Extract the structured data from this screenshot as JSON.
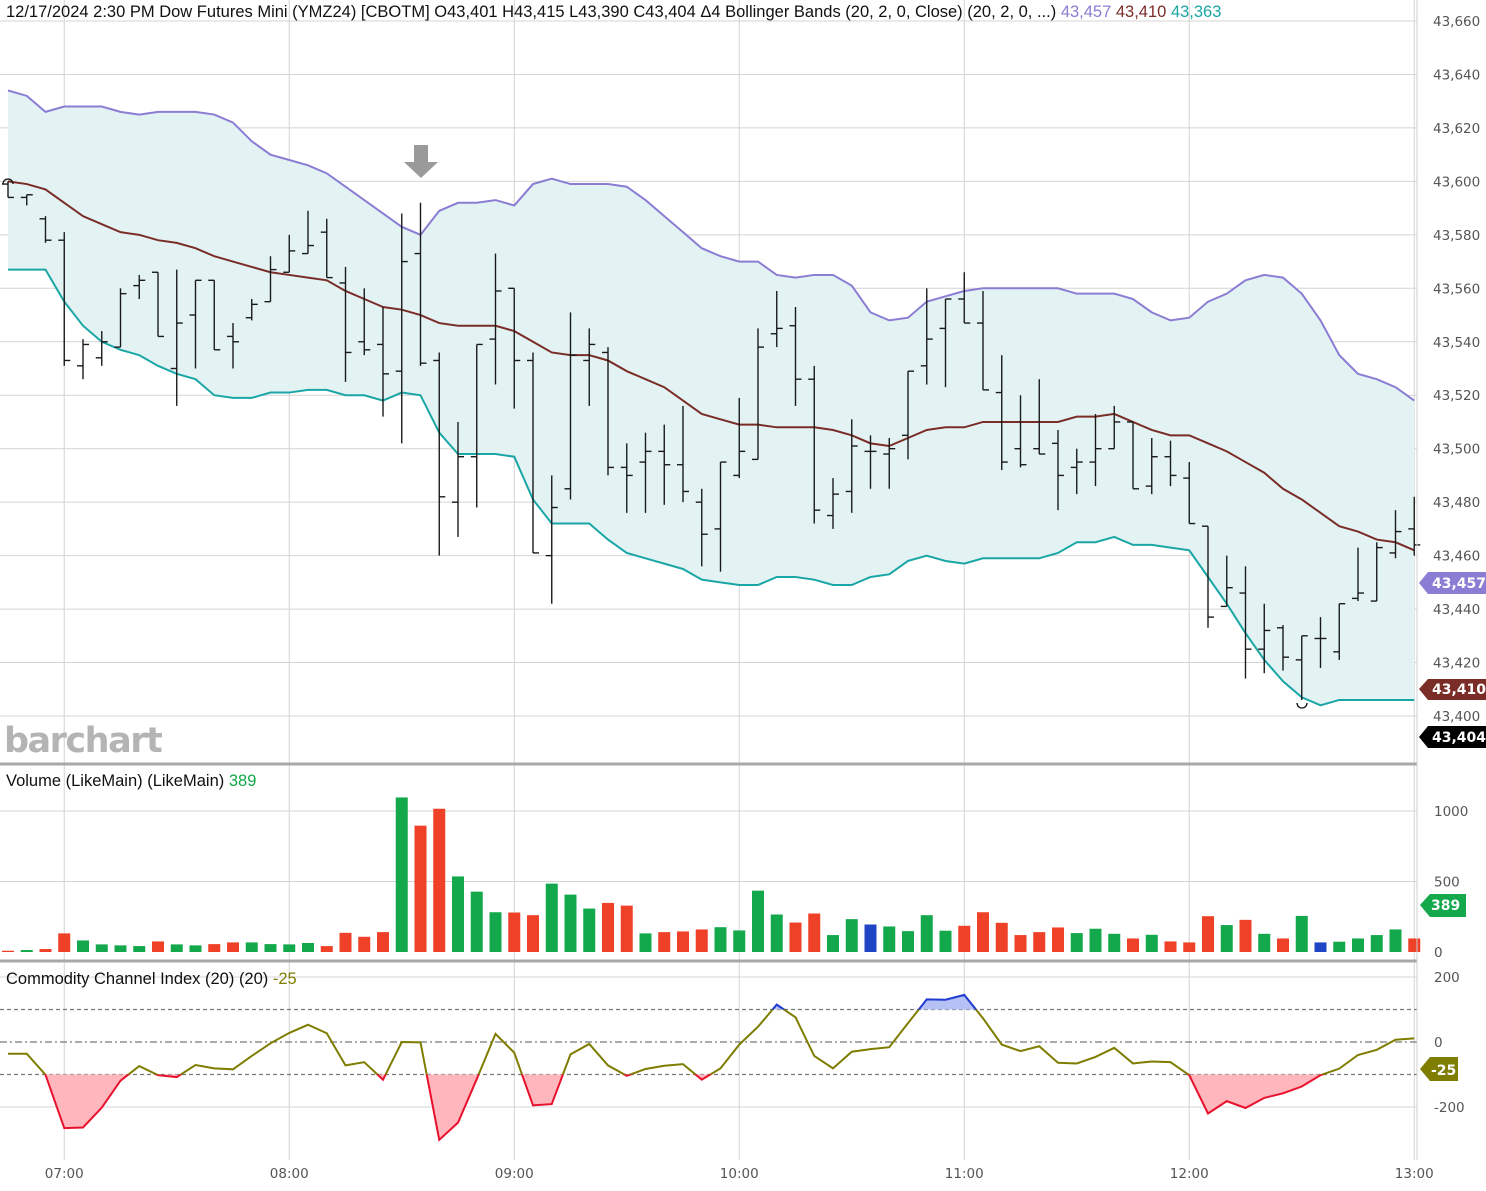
{
  "header": {
    "datetime": "12/17/2024 2:30 PM",
    "instrument": "Dow Futures Mini (YMZ24) [CBOTM]",
    "ohlc_text": "O43,401  H43,415  L43,390  C43,404  Δ4",
    "study": "Bollinger Bands (20, 2, 0, Close)  (20, 2, 0, ...)",
    "upper_value": "43,457",
    "middle_value": "43,410",
    "lower_value": "43,363"
  },
  "volume_legend": {
    "label": "Volume (LikeMain)  (LikeMain)",
    "value": "389"
  },
  "cci_legend": {
    "label": "Commodity Channel Index (20)  (20)",
    "value": "-25"
  },
  "logo": "barchart",
  "price_tags": {
    "upper": "43,457",
    "middle": "43,410",
    "last": "43,404"
  },
  "volume_tag": "389",
  "cci_tag": "-25",
  "colors": {
    "upper_band": "#8a7dd3",
    "middle_band": "#7a2d27",
    "lower_band": "#1ba6a6",
    "band_fill": "#e3f3f4",
    "bar": "#1a1a1a",
    "up_volume": "#12a84b",
    "down_volume": "#ee4128",
    "flat_volume": "#1f45c4",
    "cci_line": "#7f7d00",
    "cci_oversold": "#e8112d",
    "cci_overbought": "#1f3bd1",
    "last_tag": "#000000"
  },
  "chart_data": {
    "type": "ohlc",
    "x_ticks": [
      "07:00",
      "08:00",
      "09:00",
      "10:00",
      "11:00",
      "12:00",
      "13:00"
    ],
    "price_ticks": [
      "43,660",
      "43,640",
      "43,620",
      "43,600",
      "43,580",
      "43,560",
      "43,540",
      "43,520",
      "43,500",
      "43,480",
      "43,460",
      "43,440",
      "43,420",
      "43,400"
    ],
    "ylim": [
      43400,
      43660
    ],
    "times": [
      "06:45",
      "06:50",
      "06:55",
      "07:00",
      "07:05",
      "07:10",
      "07:15",
      "07:20",
      "07:25",
      "07:30",
      "07:35",
      "07:40",
      "07:45",
      "07:50",
      "07:55",
      "08:00",
      "08:05",
      "08:10",
      "08:15",
      "08:20",
      "08:25",
      "08:30",
      "08:35",
      "08:40",
      "08:45",
      "08:50",
      "08:55",
      "09:00",
      "09:05",
      "09:10",
      "09:15",
      "09:20",
      "09:25",
      "09:30",
      "09:35",
      "09:40",
      "09:45",
      "09:50",
      "09:55",
      "10:00",
      "10:05",
      "10:10",
      "10:15",
      "10:20",
      "10:25",
      "10:30",
      "10:35",
      "10:40",
      "10:45",
      "10:50",
      "10:55",
      "11:00",
      "11:05",
      "11:10",
      "11:15",
      "11:20",
      "11:25",
      "11:30",
      "11:35",
      "11:40",
      "11:45",
      "11:50",
      "11:55",
      "12:00",
      "12:05",
      "12:10",
      "12:15",
      "12:20",
      "12:25",
      "12:30",
      "12:35",
      "12:40",
      "12:45",
      "12:50",
      "12:55",
      "13:00"
    ],
    "open": [
      43599,
      43594,
      43586,
      43578,
      43531,
      43534,
      43538,
      43561,
      43566,
      43530,
      43550,
      43563,
      43542,
      43549,
      43555,
      43566,
      43573,
      43581,
      43562,
      43540,
      43539,
      43529,
      43573,
      43533,
      43480,
      43497,
      43541,
      43560,
      43533,
      43460,
      43485,
      43533,
      43536,
      43493,
      43495,
      43499,
      43494,
      43480,
      43470,
      43490,
      43496,
      43543,
      43546,
      43526,
      43475,
      43484,
      43499,
      43498,
      43505,
      43531,
      43545,
      43556,
      43547,
      43521,
      43500,
      43500,
      43502,
      43493,
      43495,
      43500,
      43510,
      43486,
      43497,
      43489,
      43471,
      43441,
      43446,
      43425,
      43433,
      43421,
      43429,
      43424,
      43444,
      43443,
      43461,
      43470
    ],
    "high": [
      43600,
      43595,
      43587,
      43581,
      43541,
      43544,
      43560,
      43565,
      43566,
      43567,
      43563,
      43563,
      43547,
      43556,
      43572,
      43580,
      43589,
      43586,
      43568,
      43560,
      43553,
      43588,
      43592,
      43536,
      43510,
      43539,
      43573,
      43560,
      43536,
      43490,
      43551,
      43545,
      43538,
      43502,
      43506,
      43509,
      43516,
      43485,
      43495,
      43519,
      43545,
      43559,
      43553,
      43531,
      43489,
      43511,
      43505,
      43504,
      43529,
      43560,
      43556,
      43566,
      43559,
      43535,
      43520,
      43526,
      43507,
      43500,
      43513,
      43516,
      43510,
      43504,
      43503,
      43495,
      43471,
      43460,
      43456,
      43442,
      43434,
      43430,
      43437,
      43442,
      43463,
      43465,
      43477,
      43482
    ],
    "low": [
      43594,
      43591,
      43577,
      43531,
      43526,
      43531,
      43538,
      43556,
      43542,
      43516,
      43530,
      43537,
      43530,
      43548,
      43555,
      43566,
      43573,
      43564,
      43525,
      43535,
      43512,
      43502,
      43531,
      43460,
      43467,
      43478,
      43524,
      43515,
      43461,
      43442,
      43481,
      43516,
      43490,
      43476,
      43476,
      43479,
      43480,
      43456,
      43454,
      43489,
      43496,
      43538,
      43516,
      43472,
      43470,
      43476,
      43485,
      43485,
      43496,
      43524,
      43523,
      43547,
      43522,
      43492,
      43493,
      43498,
      43477,
      43483,
      43486,
      43500,
      43485,
      43483,
      43486,
      43472,
      43433,
      43441,
      43414,
      43416,
      43417,
      43406,
      43418,
      43421,
      43443,
      43443,
      43459,
      43460
    ],
    "close": [
      43594,
      43595,
      43578,
      43533,
      43539,
      43540,
      43558,
      43563,
      43542,
      43547,
      43563,
      43537,
      43540,
      43554,
      43567,
      43574,
      43576,
      43564,
      43536,
      43537,
      43528,
      43570,
      43532,
      43482,
      43497,
      43539,
      43559,
      43533,
      43461,
      43478,
      43535,
      43539,
      43493,
      43490,
      43499,
      43494,
      43484,
      43468,
      43495,
      43499,
      43538,
      43545,
      43526,
      43477,
      43483,
      43501,
      43499,
      43500,
      43529,
      43541,
      43556,
      43547,
      43522,
      43495,
      43494,
      43498,
      43490,
      43495,
      43500,
      43510,
      43485,
      43497,
      43490,
      43472,
      43437,
      43448,
      43425,
      43432,
      43422,
      43430,
      43429,
      43442,
      43446,
      43463,
      43469,
      43464
    ],
    "bollinger_upper": [
      43634,
      43632,
      43626,
      43628,
      43628,
      43628,
      43626,
      43625,
      43626,
      43626,
      43626,
      43625,
      43622,
      43615,
      43610,
      43608,
      43606,
      43603,
      43598,
      43593,
      43588,
      43583,
      43580,
      43589,
      43592,
      43592,
      43593,
      43591,
      43599,
      43601,
      43599,
      43599,
      43599,
      43598,
      43593,
      43587,
      43581,
      43575,
      43572,
      43570,
      43570,
      43565,
      43564,
      43565,
      43565,
      43561,
      43551,
      43548,
      43549,
      43555,
      43557,
      43559,
      43560,
      43560,
      43560,
      43560,
      43560,
      43558,
      43558,
      43558,
      43556,
      43551,
      43548,
      43549,
      43555,
      43558,
      43563,
      43565,
      43564,
      43558,
      43548,
      43535,
      43528,
      43526,
      43523,
      43518
    ],
    "bollinger_middle": [
      43600,
      43599,
      43597,
      43592,
      43587,
      43584,
      43581,
      43580,
      43578,
      43577,
      43575,
      43572,
      43570,
      43568,
      43566,
      43565,
      43564,
      43563,
      43559,
      43556,
      43553,
      43552,
      43550,
      43547,
      43546,
      43546,
      43546,
      43544,
      43540,
      43536,
      43535,
      43535,
      43533,
      43529,
      43526,
      43523,
      43518,
      43513,
      43511,
      43509,
      43509,
      43508,
      43508,
      43508,
      43507,
      43505,
      43502,
      43501,
      43504,
      43507,
      43508,
      43508,
      43510,
      43510,
      43510,
      43510,
      43510,
      43512,
      43512,
      43513,
      43510,
      43507,
      43505,
      43505,
      43502,
      43499,
      43495,
      43491,
      43485,
      43481,
      43476,
      43471,
      43469,
      43466,
      43465,
      43462
    ],
    "bollinger_lower": [
      43567,
      43567,
      43567,
      43555,
      43546,
      43540,
      43537,
      43535,
      43531,
      43528,
      43526,
      43520,
      43519,
      43519,
      43521,
      43521,
      43522,
      43522,
      43520,
      43520,
      43518,
      43521,
      43520,
      43506,
      43498,
      43498,
      43498,
      43497,
      43481,
      43472,
      43472,
      43472,
      43466,
      43461,
      43459,
      43457,
      43455,
      43451,
      43450,
      43449,
      43449,
      43452,
      43452,
      43451,
      43449,
      43449,
      43452,
      43453,
      43458,
      43460,
      43458,
      43457,
      43459,
      43459,
      43459,
      43459,
      43461,
      43465,
      43465,
      43467,
      43464,
      43464,
      43463,
      43462,
      43452,
      43442,
      43431,
      43421,
      43413,
      43407,
      43404,
      43406,
      43406,
      43406,
      43406,
      43406
    ],
    "volume_ticks": [
      "1000",
      "500",
      "0"
    ],
    "volume": [
      9,
      14,
      21,
      132,
      82,
      54,
      47,
      42,
      75,
      54,
      47,
      56,
      68,
      68,
      56,
      54,
      64,
      42,
      136,
      108,
      141,
      1096,
      896,
      1016,
      536,
      428,
      282,
      280,
      261,
      485,
      407,
      308,
      348,
      329,
      132,
      141,
      146,
      160,
      176,
      153,
      435,
      266,
      209,
      273,
      120,
      233,
      195,
      181,
      148,
      261,
      151,
      186,
      282,
      207,
      120,
      141,
      174,
      134,
      165,
      129,
      96,
      122,
      75,
      68,
      254,
      191,
      228,
      129,
      96,
      256,
      68,
      73,
      96,
      120,
      160,
      96
    ],
    "cci_ticks": [
      "200",
      "0",
      "-200"
    ],
    "cci_levels": [
      100,
      0,
      -100
    ],
    "cci": [
      -36,
      -36,
      -101,
      -265,
      -263,
      -202,
      -119,
      -74,
      -102,
      -108,
      -71,
      -81,
      -84,
      -43,
      -4,
      28,
      53,
      27,
      -72,
      -62,
      -116,
      0,
      -1,
      -301,
      -248,
      -114,
      25,
      -33,
      -195,
      -191,
      -38,
      -6,
      -72,
      -104,
      -83,
      -73,
      -68,
      -116,
      -81,
      -8,
      47,
      115,
      76,
      -43,
      -81,
      -30,
      -22,
      -16,
      58,
      131,
      130,
      145,
      73,
      -8,
      -28,
      -13,
      -64,
      -66,
      -46,
      -18,
      -66,
      -60,
      -62,
      -102,
      -220,
      -182,
      -203,
      -172,
      -158,
      -137,
      -102,
      -82,
      -40,
      -24,
      7,
      11
    ]
  }
}
